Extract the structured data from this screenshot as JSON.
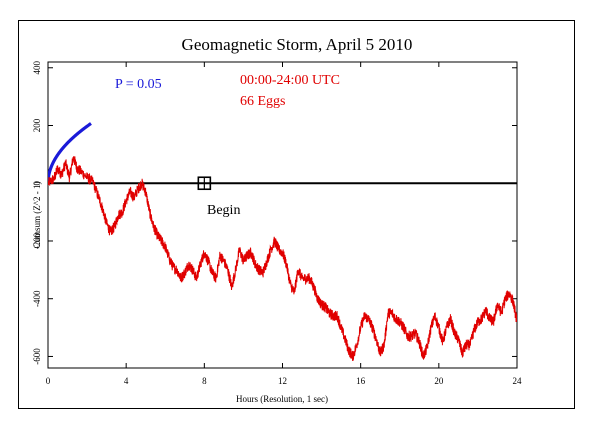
{
  "chart_data": {
    "type": "line",
    "title": "Geomagnetic Storm, April 5 2010",
    "xlabel": "Hours (Resolution, 1 sec)",
    "ylabel": "Cumsum (Z^2 - 1)",
    "xlim": [
      0,
      24
    ],
    "ylim": [
      -640,
      420
    ],
    "x_ticks": [
      0,
      4,
      8,
      12,
      16,
      20,
      24
    ],
    "x_tick_labels": [
      "0",
      "4",
      "8",
      "12",
      "16",
      "20",
      "24"
    ],
    "y_ticks": [
      -600,
      -400,
      -200,
      0,
      200,
      400
    ],
    "y_tick_labels": [
      "-600",
      "-400",
      "-200",
      "0",
      "200",
      "400"
    ],
    "grid": false,
    "annotations": {
      "p_label": "P = 0.05",
      "time_range": "00:00-24:00 UTC",
      "eggs": "66 Eggs",
      "begin_label": "Begin",
      "begin_marker_x": 8,
      "begin_marker_y": 0
    },
    "colors": {
      "cumsum": "#e00000",
      "p_envelope": "#1a1ad8",
      "zero_line": "#000000",
      "p_label": "#1a1ad8",
      "info_text": "#e00000"
    },
    "series": [
      {
        "role": "cumsum",
        "x": [
          0,
          0.3,
          0.5,
          0.7,
          0.9,
          1.1,
          1.3,
          1.5,
          1.7,
          2.0,
          2.3,
          2.6,
          2.8,
          3.0,
          3.2,
          3.4,
          3.6,
          3.8,
          4.0,
          4.2,
          4.4,
          4.6,
          4.8,
          5.0,
          5.2,
          5.4,
          5.6,
          5.8,
          6.0,
          6.2,
          6.4,
          6.6,
          6.8,
          7.0,
          7.2,
          7.4,
          7.6,
          7.8,
          8.0,
          8.2,
          8.4,
          8.6,
          8.8,
          9.0,
          9.2,
          9.4,
          9.6,
          9.8,
          10.0,
          10.2,
          10.4,
          10.6,
          10.8,
          11.0,
          11.2,
          11.4,
          11.6,
          11.8,
          12.0,
          12.2,
          12.4,
          12.6,
          12.8,
          13.0,
          13.2,
          13.4,
          13.6,
          13.8,
          14.0,
          14.2,
          14.4,
          14.6,
          14.8,
          15.0,
          15.2,
          15.4,
          15.6,
          15.8,
          16.0,
          16.2,
          16.4,
          16.6,
          16.8,
          17.0,
          17.2,
          17.4,
          17.6,
          17.8,
          18.0,
          18.2,
          18.4,
          18.6,
          18.8,
          19.0,
          19.2,
          19.4,
          19.6,
          19.8,
          20.0,
          20.2,
          20.4,
          20.6,
          20.8,
          21.0,
          21.2,
          21.4,
          21.6,
          21.8,
          22.0,
          22.2,
          22.4,
          22.6,
          22.8,
          23.0,
          23.2,
          23.4,
          23.6,
          23.8,
          24.0
        ],
        "y": [
          0,
          15,
          50,
          30,
          70,
          20,
          90,
          50,
          40,
          20,
          5,
          -50,
          -90,
          -140,
          -170,
          -150,
          -110,
          -100,
          -60,
          -30,
          -50,
          -20,
          0,
          -30,
          -100,
          -150,
          -180,
          -200,
          -220,
          -260,
          -290,
          -300,
          -330,
          -310,
          -280,
          -300,
          -330,
          -280,
          -240,
          -270,
          -310,
          -330,
          -250,
          -270,
          -300,
          -360,
          -300,
          -230,
          -270,
          -250,
          -240,
          -280,
          -300,
          -310,
          -270,
          -230,
          -200,
          -230,
          -240,
          -280,
          -350,
          -380,
          -300,
          -330,
          -330,
          -330,
          -360,
          -400,
          -420,
          -430,
          -450,
          -460,
          -460,
          -500,
          -540,
          -580,
          -600,
          -560,
          -500,
          -460,
          -470,
          -500,
          -540,
          -590,
          -560,
          -450,
          -450,
          -470,
          -480,
          -500,
          -530,
          -530,
          -520,
          -550,
          -600,
          -570,
          -500,
          -460,
          -500,
          -550,
          -500,
          -470,
          -520,
          -540,
          -590,
          -560,
          -560,
          -510,
          -480,
          -470,
          -440,
          -470,
          -480,
          -420,
          -450,
          -400,
          -380,
          -410,
          -480
        ]
      }
    ],
    "p_envelope_formula": "y = 1.645 * sqrt(2 * seconds)"
  }
}
